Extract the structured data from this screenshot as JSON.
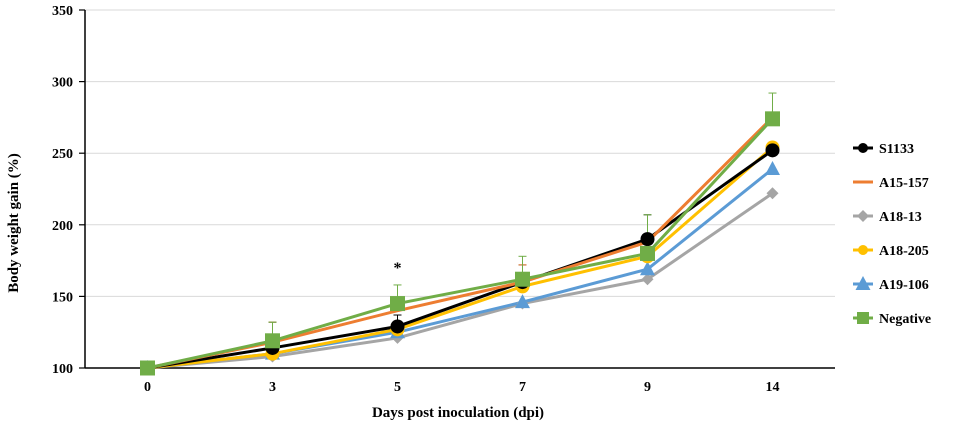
{
  "chart_data": {
    "type": "line",
    "title": "",
    "xlabel": "Days post inoculation (dpi)",
    "ylabel": "Body weight gain (%)",
    "categories": [
      "0",
      "3",
      "5",
      "7",
      "9",
      "14"
    ],
    "ylim": [
      100,
      350
    ],
    "yticks": [
      100,
      150,
      200,
      250,
      300,
      350
    ],
    "grid": "horizontal",
    "legend_position": "right",
    "series": [
      {
        "name": "S1133",
        "color": "#000000",
        "marker": "circle",
        "values": [
          100,
          114,
          129,
          160,
          190,
          252
        ],
        "err_up": [
          0,
          18,
          8,
          12,
          17,
          0
        ]
      },
      {
        "name": "A15-157",
        "color": "#ED7D31",
        "marker": "none",
        "values": [
          100,
          118,
          140,
          160,
          188,
          275
        ],
        "err_up": [
          0,
          14,
          8,
          12,
          0,
          0
        ]
      },
      {
        "name": "A18-13",
        "color": "#A5A5A5",
        "marker": "diamond",
        "values": [
          100,
          108,
          121,
          145,
          162,
          222
        ],
        "err_up": [
          0,
          0,
          0,
          0,
          0,
          0
        ]
      },
      {
        "name": "A18-205",
        "color": "#FFC000",
        "marker": "circle",
        "values": [
          100,
          110,
          127,
          157,
          178,
          254
        ],
        "err_up": [
          0,
          0,
          0,
          0,
          0,
          0
        ]
      },
      {
        "name": "A19-106",
        "color": "#5B9BD5",
        "marker": "triangle",
        "values": [
          100,
          110,
          125,
          146,
          169,
          239
        ],
        "err_up": [
          0,
          0,
          0,
          0,
          0,
          0
        ]
      },
      {
        "name": "Negative",
        "color": "#70AD47",
        "marker": "square",
        "values": [
          100,
          119,
          145,
          162,
          180,
          274
        ],
        "err_up": [
          0,
          13,
          13,
          16,
          27,
          18
        ]
      }
    ],
    "annotations": [
      {
        "text": "*",
        "category": "5",
        "y": 170
      }
    ]
  }
}
